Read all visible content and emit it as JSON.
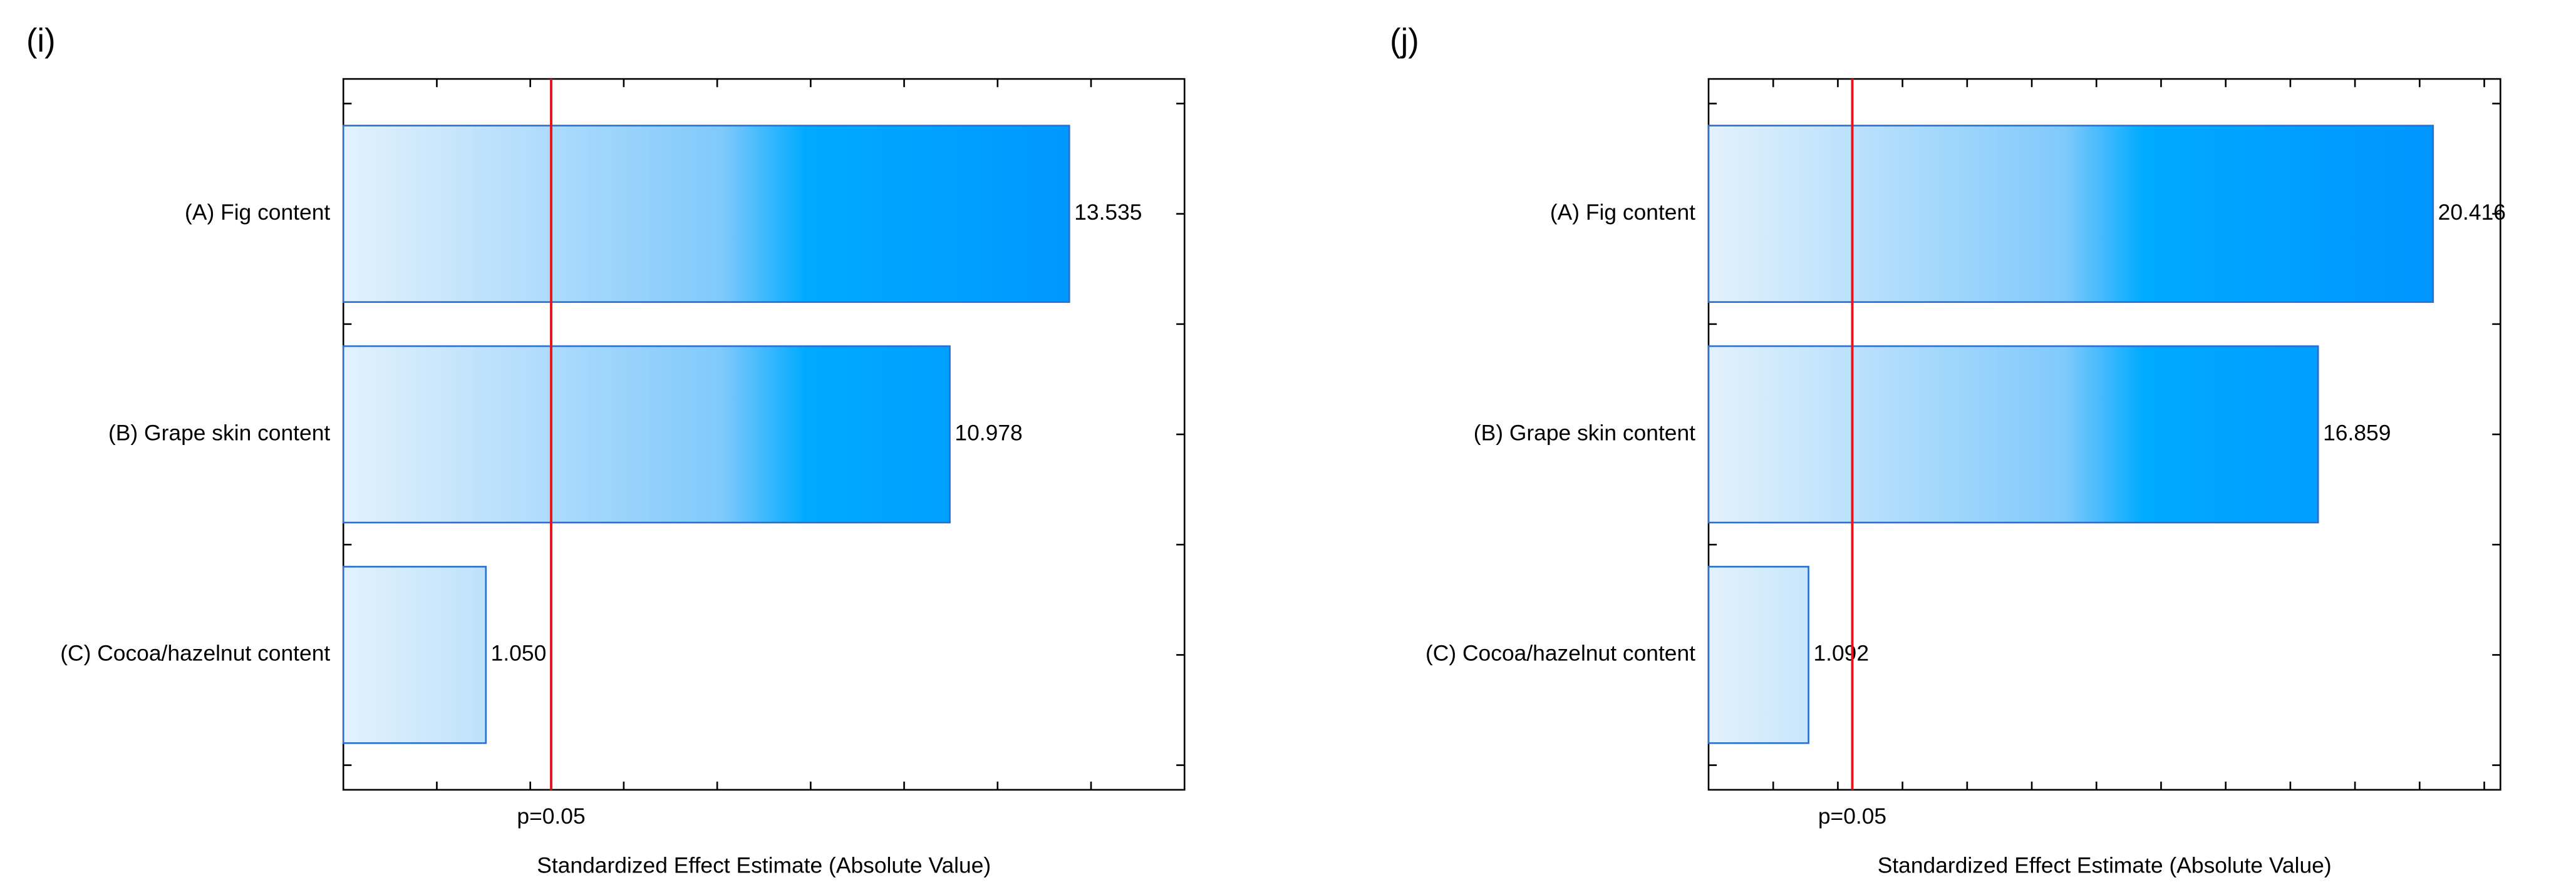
{
  "chart_data": [
    {
      "type": "bar",
      "orientation": "horizontal",
      "panel_label": "(i)",
      "categories": [
        "(A) Fig content",
        "(B) Grape skin content",
        "(C) Cocoa/hazelnut content"
      ],
      "values": [
        13.535,
        10.978,
        1.05
      ],
      "value_labels": [
        "13.535",
        "10.978",
        "1.050"
      ],
      "xlabel": "Standardized Effect Estimate (Absolute Value)",
      "xlim": [
        -2,
        16
      ],
      "xticks": [
        0,
        2,
        4,
        6,
        8,
        10,
        12,
        14
      ],
      "threshold": {
        "value": 2.447,
        "label": "p=0.05",
        "color": "#e8141c"
      },
      "color": "#0090ff",
      "edge_color": "#2a6fcf"
    },
    {
      "type": "bar",
      "orientation": "horizontal",
      "panel_label": "(j)",
      "categories": [
        "(A) Fig content",
        "(B) Grape skin content",
        "(C) Cocoa/hazelnut content"
      ],
      "values": [
        20.416,
        16.859,
        1.092
      ],
      "value_labels": [
        "20.416",
        "16.859",
        "1.092"
      ],
      "xlabel": "Standardized Effect Estimate (Absolute Value)",
      "xlim": [
        -2,
        22.5
      ],
      "xticks": [
        0,
        2,
        4,
        6,
        8,
        10,
        12,
        14,
        16,
        18,
        20,
        22
      ],
      "threshold": {
        "value": 2.447,
        "label": "p=0.05",
        "color": "#e8141c"
      },
      "color": "#0090ff",
      "edge_color": "#2a6fcf"
    }
  ]
}
